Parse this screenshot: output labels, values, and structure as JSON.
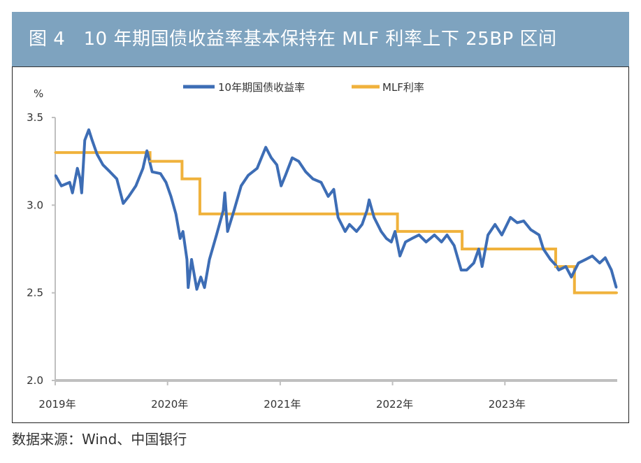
{
  "title": "图 4   10 年期国债收益率基本保持在 MLF 利率上下 25BP 区间",
  "source": "数据来源：Wind、中国银行",
  "colors": {
    "title_bar": "#7ea3bf",
    "yield": "#3d6db5",
    "mlf": "#f0b23c",
    "axis": "#bfbfbf"
  },
  "chart_data": {
    "type": "line",
    "ylabel": "%",
    "ylim": [
      2.0,
      3.5
    ],
    "yticks": [
      "2.0",
      "2.5",
      "3.0",
      "3.5"
    ],
    "xlim": [
      "2019-01-01",
      "2024-01-01"
    ],
    "xticks": [
      {
        "date": "2019-01-01",
        "label": "2019年"
      },
      {
        "date": "2020-01-01",
        "label": "2020年"
      },
      {
        "date": "2021-01-01",
        "label": "2021年"
      },
      {
        "date": "2022-01-01",
        "label": "2022年"
      },
      {
        "date": "2023-01-01",
        "label": "2023年"
      }
    ],
    "grid": false,
    "legend": "top-center",
    "series": [
      {
        "name": "10年期国债收益率",
        "style": "line",
        "points": [
          [
            "2019-01-02",
            3.17
          ],
          [
            "2019-01-21",
            3.11
          ],
          [
            "2019-02-17",
            3.13
          ],
          [
            "2019-02-26",
            3.07
          ],
          [
            "2019-03-14",
            3.21
          ],
          [
            "2019-03-23",
            3.15
          ],
          [
            "2019-03-28",
            3.07
          ],
          [
            "2019-04-07",
            3.37
          ],
          [
            "2019-04-20",
            3.43
          ],
          [
            "2019-05-01",
            3.37
          ],
          [
            "2019-05-17",
            3.29
          ],
          [
            "2019-06-05",
            3.23
          ],
          [
            "2019-06-28",
            3.19
          ],
          [
            "2019-07-20",
            3.15
          ],
          [
            "2019-08-10",
            3.01
          ],
          [
            "2019-08-28",
            3.05
          ],
          [
            "2019-09-20",
            3.11
          ],
          [
            "2019-10-13",
            3.21
          ],
          [
            "2019-10-26",
            3.31
          ],
          [
            "2019-11-12",
            3.19
          ],
          [
            "2019-12-09",
            3.18
          ],
          [
            "2019-12-27",
            3.13
          ],
          [
            "2020-01-12",
            3.05
          ],
          [
            "2020-01-28",
            2.95
          ],
          [
            "2020-02-11",
            2.81
          ],
          [
            "2020-02-20",
            2.85
          ],
          [
            "2020-03-04",
            2.69
          ],
          [
            "2020-03-08",
            2.53
          ],
          [
            "2020-03-19",
            2.69
          ],
          [
            "2020-04-05",
            2.52
          ],
          [
            "2020-04-18",
            2.59
          ],
          [
            "2020-04-30",
            2.53
          ],
          [
            "2020-05-16",
            2.69
          ],
          [
            "2020-06-08",
            2.83
          ],
          [
            "2020-06-30",
            2.97
          ],
          [
            "2020-07-05",
            3.07
          ],
          [
            "2020-07-14",
            2.85
          ],
          [
            "2020-08-04",
            2.97
          ],
          [
            "2020-08-27",
            3.11
          ],
          [
            "2020-09-19",
            3.17
          ],
          [
            "2020-10-18",
            3.21
          ],
          [
            "2020-11-15",
            3.33
          ],
          [
            "2020-12-03",
            3.27
          ],
          [
            "2020-12-21",
            3.23
          ],
          [
            "2021-01-04",
            3.11
          ],
          [
            "2021-01-18",
            3.17
          ],
          [
            "2021-02-09",
            3.27
          ],
          [
            "2021-03-02",
            3.25
          ],
          [
            "2021-03-25",
            3.19
          ],
          [
            "2021-04-17",
            3.15
          ],
          [
            "2021-05-14",
            3.13
          ],
          [
            "2021-06-06",
            3.05
          ],
          [
            "2021-06-24",
            3.09
          ],
          [
            "2021-07-08",
            2.93
          ],
          [
            "2021-07-31",
            2.85
          ],
          [
            "2021-08-14",
            2.89
          ],
          [
            "2021-09-06",
            2.85
          ],
          [
            "2021-09-24",
            2.89
          ],
          [
            "2021-10-10",
            2.97
          ],
          [
            "2021-10-17",
            3.03
          ],
          [
            "2021-11-02",
            2.93
          ],
          [
            "2021-11-25",
            2.85
          ],
          [
            "2021-12-12",
            2.81
          ],
          [
            "2021-12-28",
            2.79
          ],
          [
            "2022-01-09",
            2.85
          ],
          [
            "2022-01-25",
            2.71
          ],
          [
            "2022-02-12",
            2.79
          ],
          [
            "2022-03-05",
            2.81
          ],
          [
            "2022-03-28",
            2.83
          ],
          [
            "2022-04-20",
            2.79
          ],
          [
            "2022-05-17",
            2.83
          ],
          [
            "2022-06-09",
            2.79
          ],
          [
            "2022-06-27",
            2.83
          ],
          [
            "2022-07-20",
            2.77
          ],
          [
            "2022-08-12",
            2.63
          ],
          [
            "2022-08-30",
            2.63
          ],
          [
            "2022-09-22",
            2.67
          ],
          [
            "2022-10-08",
            2.75
          ],
          [
            "2022-10-19",
            2.65
          ],
          [
            "2022-11-07",
            2.83
          ],
          [
            "2022-11-30",
            2.89
          ],
          [
            "2022-12-22",
            2.83
          ],
          [
            "2023-01-19",
            2.93
          ],
          [
            "2023-02-10",
            2.9
          ],
          [
            "2023-03-03",
            2.91
          ],
          [
            "2023-03-26",
            2.86
          ],
          [
            "2023-04-22",
            2.83
          ],
          [
            "2023-05-06",
            2.75
          ],
          [
            "2023-05-29",
            2.69
          ],
          [
            "2023-06-14",
            2.66
          ],
          [
            "2023-06-25",
            2.63
          ],
          [
            "2023-07-18",
            2.65
          ],
          [
            "2023-08-05",
            2.59
          ],
          [
            "2023-08-28",
            2.67
          ],
          [
            "2023-09-20",
            2.69
          ],
          [
            "2023-10-12",
            2.71
          ],
          [
            "2023-11-05",
            2.67
          ],
          [
            "2023-11-23",
            2.7
          ],
          [
            "2023-12-13",
            2.63
          ],
          [
            "2023-12-29",
            2.53
          ]
        ]
      },
      {
        "name": "MLF利率",
        "style": "step",
        "points": [
          [
            "2019-01-01",
            3.3
          ],
          [
            "2019-11-05",
            3.25
          ],
          [
            "2020-02-17",
            3.15
          ],
          [
            "2020-04-15",
            2.95
          ],
          [
            "2022-01-17",
            2.85
          ],
          [
            "2022-08-15",
            2.75
          ],
          [
            "2023-06-15",
            2.65
          ],
          [
            "2023-08-15",
            2.5
          ],
          [
            "2023-12-31",
            2.5
          ]
        ]
      }
    ]
  }
}
